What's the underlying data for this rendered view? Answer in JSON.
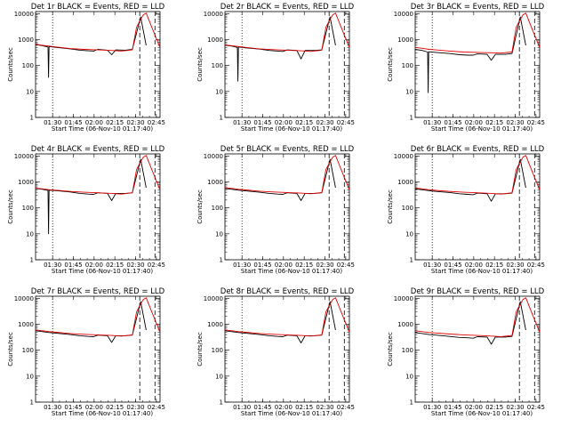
{
  "chart_data": [
    {
      "type": "line",
      "title": "Det 1r BLACK = Events, RED = LLD",
      "xlabel": "Start Time (06-Nov-10 01:17:40)",
      "ylabel": "Counts/sec",
      "yscale": "log",
      "ylim": [
        1,
        12000
      ],
      "xlim_minutes": [
        0,
        90
      ],
      "x_ticks": [
        "01:30",
        "01:45",
        "02:00",
        "02:15",
        "02:30",
        "02:45"
      ],
      "y_ticks": [
        "1",
        "10",
        "100",
        "1000",
        "10000"
      ],
      "vlines": [
        {
          "time": "01:30",
          "style": "dotted"
        },
        {
          "time": "02:33",
          "style": "dashed"
        },
        {
          "time": "02:44",
          "style": "dashed"
        }
      ],
      "series": [
        {
          "color": "#000000",
          "x": [
            0,
            5,
            9,
            9.4,
            9.8,
            15,
            25,
            32,
            38,
            42,
            45,
            52,
            55,
            58,
            65,
            70,
            76,
            80
          ],
          "y": [
            650,
            580,
            520,
            35,
            540,
            500,
            440,
            390,
            370,
            360,
            420,
            390,
            260,
            400,
            390,
            420,
            7500,
            600
          ]
        },
        {
          "color": "#e00000",
          "x": [
            0,
            5,
            10,
            15,
            25,
            35,
            45,
            55,
            62,
            70,
            73,
            76,
            78,
            80,
            84,
            90
          ],
          "y": [
            660,
            600,
            560,
            520,
            450,
            420,
            400,
            380,
            360,
            400,
            3000,
            6000,
            9000,
            10500,
            3000,
            500
          ]
        }
      ]
    },
    {
      "type": "line",
      "title": "Det 2r BLACK = Events, RED = LLD",
      "xlabel": "Start Time (06-Nov-10 01:17:40)",
      "ylabel": "Counts/sec",
      "yscale": "log",
      "ylim": [
        1,
        12000
      ],
      "xlim_minutes": [
        0,
        90
      ],
      "x_ticks": [
        "01:30",
        "01:45",
        "02:00",
        "02:15",
        "02:30",
        "02:45"
      ],
      "y_ticks": [
        "1",
        "10",
        "100",
        "1000",
        "10000"
      ],
      "vlines": [
        {
          "time": "01:30",
          "style": "dotted"
        },
        {
          "time": "02:33",
          "style": "dashed"
        },
        {
          "time": "02:44",
          "style": "dashed"
        }
      ],
      "series": [
        {
          "color": "#000000",
          "x": [
            0,
            5,
            9,
            9.4,
            9.8,
            15,
            25,
            32,
            38,
            42,
            45,
            52,
            55,
            58,
            65,
            70,
            76,
            80
          ],
          "y": [
            600,
            560,
            500,
            25,
            520,
            480,
            430,
            380,
            360,
            350,
            400,
            380,
            180,
            380,
            380,
            400,
            7500,
            600
          ]
        },
        {
          "color": "#e00000",
          "x": [
            0,
            5,
            10,
            15,
            25,
            35,
            45,
            55,
            62,
            70,
            73,
            76,
            78,
            80,
            84,
            90
          ],
          "y": [
            620,
            580,
            540,
            500,
            440,
            410,
            390,
            370,
            350,
            390,
            3000,
            6000,
            9000,
            10500,
            3000,
            500
          ]
        }
      ]
    },
    {
      "type": "line",
      "title": "Det 3r BLACK = Events, RED = LLD",
      "xlabel": "Start Time (06-Nov-10 01:17:40)",
      "ylabel": "Counts/sec",
      "yscale": "log",
      "ylim": [
        1,
        12000
      ],
      "xlim_minutes": [
        0,
        90
      ],
      "x_ticks": [
        "01:30",
        "01:45",
        "02:00",
        "02:15",
        "02:30",
        "02:45"
      ],
      "y_ticks": [
        "1",
        "10",
        "100",
        "1000",
        "10000"
      ],
      "vlines": [
        {
          "time": "01:30",
          "style": "dotted"
        },
        {
          "time": "02:33",
          "style": "dashed"
        },
        {
          "time": "02:44",
          "style": "dashed"
        }
      ],
      "series": [
        {
          "color": "#000000",
          "x": [
            0,
            5,
            9,
            9.4,
            9.8,
            15,
            25,
            32,
            38,
            42,
            45,
            52,
            55,
            58,
            65,
            70,
            76,
            80
          ],
          "y": [
            420,
            380,
            330,
            9,
            340,
            320,
            290,
            260,
            250,
            250,
            280,
            270,
            160,
            270,
            270,
            290,
            7500,
            600
          ]
        },
        {
          "color": "#e00000",
          "x": [
            0,
            5,
            10,
            15,
            25,
            35,
            45,
            55,
            62,
            70,
            73,
            76,
            78,
            80,
            84,
            90
          ],
          "y": [
            500,
            460,
            420,
            400,
            360,
            330,
            320,
            310,
            300,
            330,
            3000,
            6000,
            9000,
            10500,
            3000,
            500
          ]
        }
      ]
    },
    {
      "type": "line",
      "title": "Det 4r BLACK = Events, RED = LLD",
      "xlabel": "Start Time (06-Nov-10 01:17:40)",
      "ylabel": "Counts/sec",
      "yscale": "log",
      "ylim": [
        1,
        12000
      ],
      "xlim_minutes": [
        0,
        90
      ],
      "x_ticks": [
        "01:30",
        "01:45",
        "02:00",
        "02:15",
        "02:30",
        "02:45"
      ],
      "y_ticks": [
        "1",
        "10",
        "100",
        "1000",
        "10000"
      ],
      "vlines": [
        {
          "time": "01:30",
          "style": "dotted"
        },
        {
          "time": "02:33",
          "style": "dashed"
        },
        {
          "time": "02:44",
          "style": "dashed"
        }
      ],
      "series": [
        {
          "color": "#000000",
          "x": [
            0,
            5,
            9,
            9.4,
            9.8,
            15,
            25,
            32,
            38,
            42,
            45,
            52,
            55,
            58,
            65,
            70,
            76,
            80
          ],
          "y": [
            560,
            520,
            470,
            10,
            480,
            460,
            410,
            360,
            340,
            330,
            380,
            360,
            190,
            360,
            360,
            380,
            7500,
            600
          ]
        },
        {
          "color": "#e00000",
          "x": [
            0,
            5,
            10,
            15,
            25,
            35,
            45,
            55,
            62,
            70,
            73,
            76,
            78,
            80,
            84,
            90
          ],
          "y": [
            580,
            540,
            500,
            480,
            430,
            400,
            380,
            360,
            340,
            380,
            3000,
            6000,
            9000,
            10500,
            3000,
            500
          ]
        }
      ]
    },
    {
      "type": "line",
      "title": "Det 5r BLACK = Events, RED = LLD",
      "xlabel": "Start Time (06-Nov-10 01:17:40)",
      "ylabel": "Counts/sec",
      "yscale": "log",
      "ylim": [
        1,
        12000
      ],
      "xlim_minutes": [
        0,
        90
      ],
      "x_ticks": [
        "01:30",
        "01:45",
        "02:00",
        "02:15",
        "02:30",
        "02:45"
      ],
      "y_ticks": [
        "1",
        "10",
        "100",
        "1000",
        "10000"
      ],
      "vlines": [
        {
          "time": "01:30",
          "style": "dotted"
        },
        {
          "time": "02:33",
          "style": "dashed"
        },
        {
          "time": "02:44",
          "style": "dashed"
        }
      ],
      "series": [
        {
          "color": "#000000",
          "x": [
            0,
            5,
            10,
            15,
            25,
            32,
            38,
            42,
            45,
            52,
            55,
            58,
            65,
            70,
            76,
            80
          ],
          "y": [
            560,
            520,
            480,
            450,
            400,
            360,
            340,
            330,
            380,
            360,
            190,
            360,
            360,
            380,
            7500,
            600
          ]
        },
        {
          "color": "#e00000",
          "x": [
            0,
            5,
            10,
            15,
            25,
            35,
            45,
            55,
            62,
            70,
            73,
            76,
            78,
            80,
            84,
            90
          ],
          "y": [
            600,
            560,
            520,
            490,
            440,
            410,
            390,
            370,
            350,
            390,
            3000,
            6000,
            9000,
            10500,
            3000,
            500
          ]
        }
      ]
    },
    {
      "type": "line",
      "title": "Det 6r BLACK = Events, RED = LLD",
      "xlabel": "Start Time (06-Nov-10 01:17:40)",
      "ylabel": "Counts/sec",
      "yscale": "log",
      "ylim": [
        1,
        12000
      ],
      "xlim_minutes": [
        0,
        90
      ],
      "x_ticks": [
        "01:30",
        "01:45",
        "02:00",
        "02:15",
        "02:30",
        "02:45"
      ],
      "y_ticks": [
        "1",
        "10",
        "100",
        "1000",
        "10000"
      ],
      "vlines": [
        {
          "time": "01:30",
          "style": "dotted"
        },
        {
          "time": "02:33",
          "style": "dashed"
        },
        {
          "time": "02:44",
          "style": "dashed"
        }
      ],
      "series": [
        {
          "color": "#000000",
          "x": [
            0,
            5,
            10,
            15,
            25,
            32,
            38,
            42,
            45,
            52,
            55,
            58,
            65,
            70,
            76,
            80
          ],
          "y": [
            540,
            500,
            460,
            430,
            390,
            350,
            330,
            320,
            370,
            350,
            180,
            350,
            350,
            370,
            7500,
            600
          ]
        },
        {
          "color": "#e00000",
          "x": [
            0,
            5,
            10,
            15,
            25,
            35,
            45,
            55,
            62,
            70,
            73,
            76,
            78,
            80,
            84,
            90
          ],
          "y": [
            580,
            540,
            500,
            470,
            430,
            400,
            380,
            360,
            340,
            380,
            3000,
            6000,
            9000,
            10500,
            3000,
            500
          ]
        }
      ]
    },
    {
      "type": "line",
      "title": "Det 7r BLACK = Events, RED = LLD",
      "xlabel": "Start Time (06-Nov-10 01:17:40)",
      "ylabel": "Counts/sec",
      "yscale": "log",
      "ylim": [
        1,
        12000
      ],
      "xlim_minutes": [
        0,
        90
      ],
      "x_ticks": [
        "01:30",
        "01:45",
        "02:00",
        "02:15",
        "02:30",
        "02:45"
      ],
      "y_ticks": [
        "1",
        "10",
        "100",
        "1000",
        "10000"
      ],
      "vlines": [
        {
          "time": "01:30",
          "style": "dotted"
        },
        {
          "time": "02:33",
          "style": "dashed"
        },
        {
          "time": "02:44",
          "style": "dashed"
        }
      ],
      "series": [
        {
          "color": "#000000",
          "x": [
            0,
            5,
            10,
            15,
            25,
            32,
            38,
            42,
            45,
            52,
            55,
            58,
            65,
            70,
            76,
            80
          ],
          "y": [
            560,
            520,
            480,
            450,
            400,
            360,
            340,
            330,
            380,
            360,
            200,
            360,
            360,
            380,
            7500,
            600
          ]
        },
        {
          "color": "#e00000",
          "x": [
            0,
            5,
            10,
            15,
            25,
            35,
            45,
            55,
            62,
            70,
            73,
            76,
            78,
            80,
            84,
            90
          ],
          "y": [
            600,
            560,
            520,
            490,
            440,
            410,
            390,
            370,
            350,
            390,
            3000,
            6000,
            9000,
            10500,
            3000,
            500
          ]
        }
      ]
    },
    {
      "type": "line",
      "title": "Det 8r BLACK = Events, RED = LLD",
      "xlabel": "Start Time (06-Nov-10 01:17:40)",
      "ylabel": "Counts/sec",
      "yscale": "log",
      "ylim": [
        1,
        12000
      ],
      "xlim_minutes": [
        0,
        90
      ],
      "x_ticks": [
        "01:30",
        "01:45",
        "02:00",
        "02:15",
        "02:30",
        "02:45"
      ],
      "y_ticks": [
        "1",
        "10",
        "100",
        "1000",
        "10000"
      ],
      "vlines": [
        {
          "time": "01:30",
          "style": "dotted"
        },
        {
          "time": "02:33",
          "style": "dashed"
        },
        {
          "time": "02:44",
          "style": "dashed"
        }
      ],
      "series": [
        {
          "color": "#000000",
          "x": [
            0,
            5,
            10,
            15,
            25,
            32,
            38,
            42,
            45,
            52,
            55,
            58,
            65,
            70,
            76,
            80
          ],
          "y": [
            560,
            520,
            480,
            450,
            400,
            360,
            340,
            330,
            380,
            360,
            190,
            360,
            360,
            380,
            7500,
            600
          ]
        },
        {
          "color": "#e00000",
          "x": [
            0,
            5,
            10,
            15,
            25,
            35,
            45,
            55,
            62,
            70,
            73,
            76,
            78,
            80,
            84,
            90
          ],
          "y": [
            600,
            560,
            520,
            490,
            440,
            410,
            390,
            370,
            350,
            390,
            3000,
            6000,
            9000,
            10500,
            3000,
            500
          ]
        }
      ]
    },
    {
      "type": "line",
      "title": "Det 9r BLACK = Events, RED = LLD",
      "xlabel": "Start Time (06-Nov-10 01:17:40)",
      "ylabel": "Counts/sec",
      "yscale": "log",
      "ylim": [
        1,
        12000
      ],
      "xlim_minutes": [
        0,
        90
      ],
      "x_ticks": [
        "01:30",
        "01:45",
        "02:00",
        "02:15",
        "02:30",
        "02:45"
      ],
      "y_ticks": [
        "1",
        "10",
        "100",
        "1000",
        "10000"
      ],
      "vlines": [
        {
          "time": "01:30",
          "style": "dotted"
        },
        {
          "time": "02:33",
          "style": "dashed"
        },
        {
          "time": "02:44",
          "style": "dashed"
        }
      ],
      "series": [
        {
          "color": "#000000",
          "x": [
            0,
            5,
            10,
            15,
            25,
            32,
            38,
            42,
            45,
            52,
            55,
            58,
            65,
            70,
            76,
            80
          ],
          "y": [
            480,
            440,
            400,
            380,
            340,
            310,
            300,
            290,
            330,
            320,
            170,
            320,
            320,
            340,
            7500,
            600
          ]
        },
        {
          "color": "#e00000",
          "x": [
            0,
            5,
            10,
            15,
            25,
            35,
            45,
            55,
            62,
            70,
            73,
            76,
            78,
            80,
            84,
            90
          ],
          "y": [
            560,
            520,
            480,
            460,
            420,
            390,
            370,
            350,
            330,
            370,
            3000,
            6000,
            9000,
            10500,
            3000,
            500
          ]
        }
      ]
    }
  ]
}
